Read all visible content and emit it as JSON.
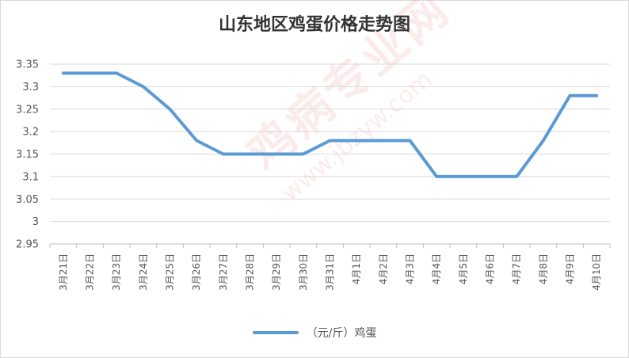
{
  "chart_data": {
    "type": "line",
    "title": "山东地区鸡蛋价格走势图",
    "categories": [
      "3月21日",
      "3月22日",
      "3月23日",
      "3月24日",
      "3月25日",
      "3月26日",
      "3月27日",
      "3月28日",
      "3月29日",
      "3月30日",
      "3月31日",
      "4月1日",
      "4月2日",
      "4月3日",
      "4月4日",
      "4月5日",
      "4月6日",
      "4月7日",
      "4月8日",
      "4月9日",
      "4月10日"
    ],
    "series": [
      {
        "name": "（元/斤）鸡蛋",
        "color": "#5b9bd5",
        "values": [
          3.33,
          3.33,
          3.33,
          3.3,
          3.25,
          3.18,
          3.15,
          3.15,
          3.15,
          3.15,
          3.18,
          3.18,
          3.18,
          3.18,
          3.1,
          3.1,
          3.1,
          3.1,
          3.18,
          3.28,
          3.28
        ]
      }
    ],
    "ylim": [
      2.95,
      3.35
    ],
    "yticks": [
      "3.35",
      "3.3",
      "3.25",
      "3.2",
      "3.15",
      "3.1",
      "3.05",
      "3",
      "2.95"
    ],
    "xlabel": "",
    "ylabel": "",
    "grid": true,
    "legend_position": "bottom"
  },
  "watermark": {
    "brand": "鸡病专业网",
    "url": "www.jbzyw.com"
  }
}
